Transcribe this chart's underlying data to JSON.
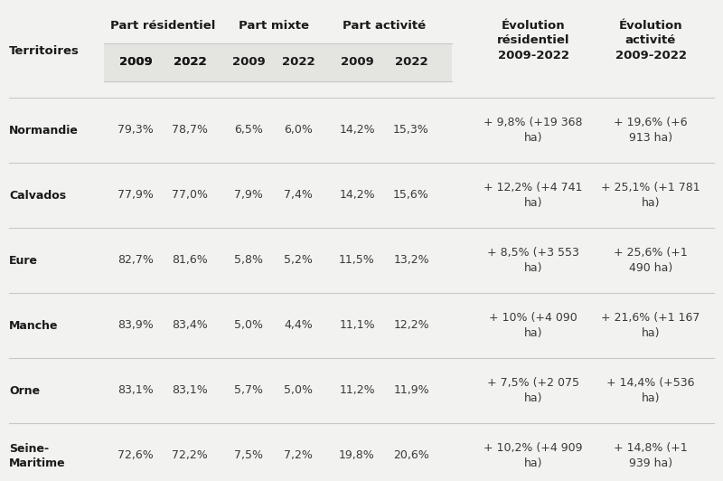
{
  "rows": [
    {
      "name": "Normandie",
      "res_2009": "79,3%",
      "res_2022": "78,7%",
      "mix_2009": "6,5%",
      "mix_2022": "6,0%",
      "act_2009": "14,2%",
      "act_2022": "15,3%",
      "evol_res": "+ 9,8% (+19 368\nha)",
      "evol_act": "+ 19,6% (+6\n913 ha)"
    },
    {
      "name": "Calvados",
      "res_2009": "77,9%",
      "res_2022": "77,0%",
      "mix_2009": "7,9%",
      "mix_2022": "7,4%",
      "act_2009": "14,2%",
      "act_2022": "15,6%",
      "evol_res": "+ 12,2% (+4 741\nha)",
      "evol_act": "+ 25,1% (+1 781\nha)"
    },
    {
      "name": "Eure",
      "res_2009": "82,7%",
      "res_2022": "81,6%",
      "mix_2009": "5,8%",
      "mix_2022": "5,2%",
      "act_2009": "11,5%",
      "act_2022": "13,2%",
      "evol_res": "+ 8,5% (+3 553\nha)",
      "evol_act": "+ 25,6% (+1\n490 ha)"
    },
    {
      "name": "Manche",
      "res_2009": "83,9%",
      "res_2022": "83,4%",
      "mix_2009": "5,0%",
      "mix_2022": "4,4%",
      "act_2009": "11,1%",
      "act_2022": "12,2%",
      "evol_res": "+ 10% (+4 090\nha)",
      "evol_act": "+ 21,6% (+1 167\nha)"
    },
    {
      "name": "Orne",
      "res_2009": "83,1%",
      "res_2022": "83,1%",
      "mix_2009": "5,7%",
      "mix_2022": "5,0%",
      "act_2009": "11,2%",
      "act_2022": "11,9%",
      "evol_res": "+ 7,5% (+2 075\nha)",
      "evol_act": "+ 14,4% (+536\nha)"
    },
    {
      "name": "Seine-\nMaritime",
      "res_2009": "72,6%",
      "res_2022": "72,2%",
      "mix_2009": "7,5%",
      "mix_2022": "7,2%",
      "act_2009": "19,8%",
      "act_2022": "20,6%",
      "evol_res": "+ 10,2% (+4 909\nha)",
      "evol_act": "+ 14,8% (+1\n939 ha)"
    }
  ],
  "bg_color": "#f2f2f0",
  "header_bg": "#e4e4e1",
  "text_color": "#3a3a3a",
  "bold_color": "#1a1a1a",
  "line_color": "#c8c8c4",
  "font_size_header": 9.5,
  "font_size_data": 9.0
}
